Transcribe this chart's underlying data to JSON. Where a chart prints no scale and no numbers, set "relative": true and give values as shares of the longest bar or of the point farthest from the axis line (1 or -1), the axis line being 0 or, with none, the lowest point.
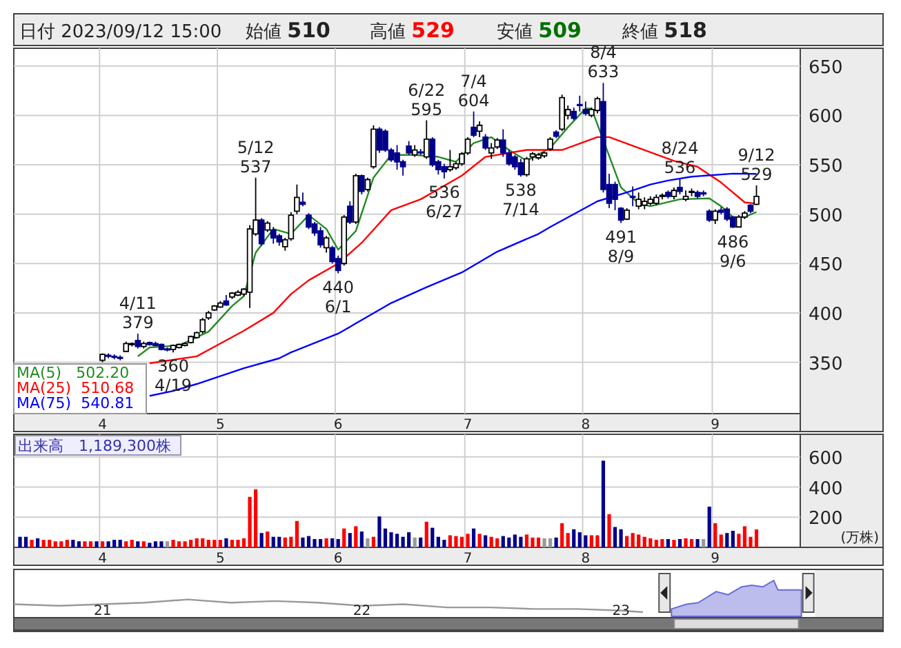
{
  "chart_data": [
    {
      "type": "candlestick",
      "title": "日付 2023/09/12 15:00",
      "categories": [
        null,
        null,
        null,
        null,
        null,
        null,
        null,
        null,
        null,
        null,
        null,
        null,
        null,
        null,
        "4",
        null,
        null,
        null,
        null,
        null,
        null,
        null,
        null,
        null,
        null,
        null,
        null,
        null,
        null,
        null,
        null,
        null,
        null,
        null,
        "5",
        null,
        null,
        null,
        null,
        null,
        null,
        null,
        null,
        null,
        null,
        null,
        null,
        null,
        null,
        null,
        null,
        null,
        null,
        null,
        "6",
        null,
        null,
        null,
        null,
        null,
        null,
        null,
        null,
        null,
        null,
        null,
        null,
        null,
        null,
        null,
        null,
        null,
        null,
        null,
        null,
        null,
        "7",
        null,
        null,
        null,
        null,
        null,
        null,
        null,
        null,
        null,
        null,
        null,
        null,
        null,
        null,
        null,
        null,
        null,
        null,
        null,
        "8",
        null,
        null,
        null,
        null,
        null,
        null,
        null,
        null,
        null,
        null,
        null,
        null,
        null,
        null,
        null,
        null,
        null,
        null,
        null,
        null,
        null,
        "9",
        null,
        null,
        null,
        null,
        null,
        null,
        null
      ],
      "ohlc": [
        null,
        null,
        null,
        null,
        null,
        null,
        null,
        null,
        null,
        null,
        null,
        null,
        null,
        null,
        [
          352,
          359,
          350,
          358
        ],
        [
          357,
          359,
          354,
          356
        ],
        [
          356,
          358,
          353,
          355
        ],
        [
          355,
          357,
          352,
          354
        ],
        [
          361,
          371,
          361,
          369
        ],
        [
          368,
          370,
          366,
          369
        ],
        [
          372,
          379,
          364,
          366
        ],
        [
          366,
          371,
          364,
          369
        ],
        [
          370,
          371,
          367,
          368
        ],
        [
          369,
          371,
          366,
          367
        ],
        [
          368,
          369,
          362,
          363
        ],
        [
          363,
          365,
          361,
          363
        ],
        [
          363,
          368,
          360,
          367
        ],
        [
          365,
          369,
          364,
          368
        ],
        [
          367,
          370,
          366,
          369
        ],
        [
          370,
          377,
          369,
          376
        ],
        [
          375,
          381,
          374,
          380
        ],
        [
          381,
          395,
          379,
          393
        ],
        [
          395,
          402,
          393,
          400
        ],
        [
          403,
          408,
          402,
          407
        ],
        [
          406,
          412,
          405,
          410
        ],
        [
          412,
          418,
          407,
          408
        ],
        [
          416,
          421,
          414,
          420
        ],
        [
          418,
          423,
          417,
          421
        ],
        [
          419,
          425,
          417,
          424
        ],
        [
          421,
          489,
          405,
          485
        ],
        [
          480,
          537,
          478,
          494
        ],
        [
          494,
          496,
          468,
          470
        ],
        [
          484,
          493,
          482,
          491
        ],
        [
          484,
          487,
          470,
          476
        ],
        [
          478,
          480,
          468,
          472
        ],
        [
          467,
          476,
          463,
          474
        ],
        [
          475,
          502,
          473,
          499
        ],
        [
          503,
          530,
          500,
          517
        ],
        [
          512,
          522,
          508,
          510
        ],
        [
          499,
          501,
          485,
          487
        ],
        [
          490,
          492,
          478,
          481
        ],
        [
          483,
          487,
          466,
          469
        ],
        [
          466,
          478,
          461,
          476
        ],
        [
          466,
          468,
          450,
          452
        ],
        [
          455,
          458,
          440,
          443
        ],
        [
          450,
          499,
          448,
          497
        ],
        [
          508,
          513,
          490,
          492
        ],
        [
          492,
          541,
          490,
          539
        ],
        [
          539,
          540,
          520,
          523
        ],
        [
          525,
          537,
          523,
          535
        ],
        [
          548,
          590,
          546,
          586
        ],
        [
          586,
          588,
          562,
          565
        ],
        [
          584,
          586,
          563,
          565
        ],
        [
          565,
          567,
          553,
          555
        ],
        [
          562,
          570,
          545,
          553
        ],
        [
          553,
          555,
          539,
          548
        ],
        [
          569,
          574,
          560,
          562
        ],
        [
          560,
          570,
          558,
          565
        ],
        [
          563,
          566,
          560,
          562
        ],
        [
          558,
          595,
          556,
          576
        ],
        [
          576,
          578,
          548,
          550
        ],
        [
          553,
          555,
          540,
          545
        ],
        [
          548,
          551,
          536,
          543
        ],
        [
          545,
          565,
          543,
          548
        ],
        [
          547,
          553,
          545,
          551
        ],
        [
          551,
          563,
          549,
          561
        ],
        [
          562,
          578,
          560,
          576
        ],
        [
          588,
          604,
          578,
          580
        ],
        [
          584,
          594,
          578,
          590
        ],
        [
          578,
          581,
          565,
          567
        ],
        [
          562,
          572,
          556,
          567
        ],
        [
          568,
          577,
          566,
          575
        ],
        [
          575,
          586,
          558,
          562
        ],
        [
          562,
          565,
          549,
          551
        ],
        [
          558,
          560,
          545,
          548
        ],
        [
          552,
          556,
          538,
          540
        ],
        [
          540,
          558,
          538,
          556
        ],
        [
          558,
          563,
          554,
          561
        ],
        [
          557,
          562,
          555,
          560
        ],
        [
          559,
          563,
          557,
          562
        ],
        [
          566,
          578,
          564,
          576
        ],
        [
          583,
          585,
          577,
          579
        ],
        [
          586,
          621,
          584,
          618
        ],
        [
          600,
          610,
          596,
          606
        ],
        [
          604,
          608,
          595,
          597
        ],
        [
          611,
          620,
          604,
          610
        ],
        [
          606,
          614,
          600,
          602
        ],
        [
          600,
          608,
          598,
          606
        ],
        [
          605,
          619,
          602,
          617
        ],
        [
          614,
          633,
          522,
          525
        ],
        [
          530,
          541,
          506,
          511
        ],
        [
          530,
          533,
          504,
          515
        ],
        [
          506,
          507,
          491,
          494
        ],
        [
          495,
          506,
          494,
          504
        ],
        [
          518,
          528,
          508,
          517
        ],
        [
          508,
          522,
          505,
          515
        ],
        [
          509,
          517,
          505,
          513
        ],
        [
          511,
          518,
          509,
          515
        ],
        [
          511,
          520,
          509,
          517
        ],
        [
          518,
          521,
          515,
          519
        ],
        [
          522,
          524,
          516,
          518
        ],
        [
          518,
          527,
          515,
          524
        ],
        [
          527,
          536,
          520,
          523
        ],
        [
          515,
          524,
          513,
          518
        ],
        [
          522,
          526,
          518,
          523
        ],
        [
          522,
          524,
          516,
          518
        ],
        [
          521,
          524,
          518,
          521
        ],
        [
          503,
          505,
          492,
          494
        ],
        [
          494,
          505,
          490,
          503
        ],
        [
          504,
          507,
          500,
          502
        ],
        [
          505,
          507,
          493,
          495
        ],
        [
          497,
          498,
          486,
          487
        ],
        [
          487,
          499,
          487,
          497
        ],
        [
          497,
          503,
          495,
          501
        ],
        [
          509,
          510,
          501,
          503
        ],
        [
          510,
          529,
          509,
          518
        ]
      ],
      "series": [
        {
          "type": "line",
          "name": "MA(5)   502.20",
          "color": "#228b22",
          "values": [
            null,
            null,
            null,
            null,
            null,
            null,
            null,
            null,
            null,
            null,
            null,
            null,
            null,
            null,
            null,
            null,
            null,
            null,
            null,
            null,
            356,
            null,
            365,
            null,
            null,
            null,
            null,
            367,
            null,
            null,
            null,
            null,
            381,
            null,
            null,
            null,
            407,
            null,
            417,
            null,
            461,
            null,
            null,
            485,
            null,
            null,
            480,
            null,
            null,
            499,
            null,
            null,
            485,
            null,
            464,
            null,
            null,
            483,
            null,
            null,
            537,
            null,
            null,
            560,
            null,
            null,
            null,
            560,
            null,
            null,
            null,
            558,
            null,
            null,
            553,
            null,
            null,
            572,
            null,
            null,
            578,
            null,
            null,
            565,
            null,
            null,
            554,
            null,
            null,
            null,
            567,
            null,
            null,
            588,
            null,
            null,
            607,
            607,
            null,
            null,
            null,
            null,
            527,
            null,
            null,
            511,
            null,
            508,
            null,
            null,
            null,
            null,
            515,
            null,
            null,
            null,
            null,
            516,
            null,
            508,
            null,
            497,
            null,
            497,
            null,
            502.2
          ]
        },
        {
          "type": "line",
          "name": "MA(25)  510.68",
          "color": "#ff0000",
          "values": [
            null,
            null,
            null,
            null,
            null,
            null,
            null,
            null,
            null,
            null,
            null,
            null,
            null,
            null,
            null,
            null,
            null,
            null,
            null,
            null,
            null,
            null,
            349,
            null,
            null,
            null,
            null,
            null,
            null,
            null,
            356,
            null,
            null,
            null,
            null,
            null,
            null,
            null,
            382,
            null,
            null,
            null,
            null,
            400,
            null,
            null,
            419,
            null,
            null,
            433,
            null,
            null,
            null,
            null,
            450,
            null,
            null,
            null,
            471,
            null,
            null,
            null,
            null,
            504,
            null,
            null,
            null,
            null,
            515,
            null,
            null,
            null,
            null,
            null,
            null,
            539,
            null,
            null,
            null,
            558,
            null,
            null,
            null,
            null,
            null,
            null,
            565,
            null,
            null,
            null,
            565,
            null,
            565,
            null,
            null,
            null,
            null,
            null,
            578,
            null,
            578,
            null,
            null,
            null,
            null,
            567,
            null,
            null,
            null,
            null,
            null,
            554,
            null,
            null,
            null,
            548,
            null,
            null,
            null,
            532,
            null,
            null,
            null,
            512,
            null,
            510.68
          ]
        },
        {
          "type": "line",
          "name": "MA(75)  540.81",
          "color": "#0000ff",
          "values": [
            null,
            null,
            null,
            null,
            null,
            null,
            null,
            null,
            null,
            null,
            null,
            null,
            null,
            null,
            null,
            null,
            null,
            null,
            null,
            null,
            null,
            null,
            316,
            null,
            null,
            null,
            321,
            null,
            null,
            null,
            328,
            null,
            null,
            null,
            336,
            null,
            null,
            null,
            344,
            null,
            null,
            null,
            null,
            null,
            354,
            null,
            360,
            null,
            null,
            null,
            null,
            null,
            null,
            null,
            379,
            null,
            null,
            null,
            null,
            null,
            null,
            null,
            null,
            410,
            null,
            null,
            null,
            null,
            null,
            426,
            null,
            null,
            null,
            null,
            null,
            441,
            null,
            null,
            null,
            null,
            null,
            462,
            null,
            null,
            null,
            null,
            null,
            null,
            480,
            null,
            487,
            null,
            null,
            null,
            null,
            null,
            null,
            null,
            513,
            null,
            null,
            null,
            null,
            522,
            null,
            null,
            null,
            530,
            null,
            null,
            534,
            null,
            null,
            null,
            538,
            null,
            null,
            null,
            null,
            null,
            null,
            541,
            null,
            null,
            null,
            540.81
          ]
        }
      ],
      "ylim": [
        298,
        668
      ],
      "yticks": [
        350,
        400,
        450,
        500,
        550,
        600,
        650
      ],
      "grid": true,
      "legend": "bottom left",
      "annotations": [
        "始値 510",
        "高値 529",
        "安値 509",
        "終値 518",
        {
          "text": "4/11\n379",
          "y": 379
        },
        {
          "text": "360\n4/19",
          "y": 360
        },
        {
          "text": "5/12\n537",
          "y": 537
        },
        {
          "text": "440\n6/1",
          "y": 440
        },
        {
          "text": "6/22\n595",
          "y": 595
        },
        {
          "text": "536\n6/27",
          "y": 536
        },
        {
          "text": "7/4\n604",
          "y": 604
        },
        {
          "text": "538\n7/14",
          "y": 538
        },
        {
          "text": "8/4\n633",
          "y": 633
        },
        {
          "text": "491\n8/9",
          "y": 491
        },
        {
          "text": "8/24\n536",
          "y": 536
        },
        {
          "text": "486\n9/6",
          "y": 486
        },
        {
          "text": "9/12\n529",
          "y": 529
        }
      ]
    },
    {
      "type": "bar",
      "title": "出来高　1,189,300株",
      "ylabel": "(万株)",
      "categories": [
        null,
        null,
        null,
        null,
        null,
        null,
        null,
        null,
        null,
        null,
        null,
        null,
        null,
        null,
        "4",
        null,
        null,
        null,
        null,
        null,
        null,
        null,
        null,
        null,
        null,
        null,
        null,
        null,
        null,
        null,
        null,
        null,
        null,
        null,
        "5",
        null,
        null,
        null,
        null,
        null,
        null,
        null,
        null,
        null,
        null,
        null,
        null,
        null,
        null,
        null,
        null,
        null,
        null,
        null,
        "6",
        null,
        null,
        null,
        null,
        null,
        null,
        null,
        null,
        null,
        null,
        null,
        null,
        null,
        null,
        null,
        null,
        null,
        null,
        null,
        null,
        null,
        "7",
        null,
        null,
        null,
        null,
        null,
        null,
        null,
        null,
        null,
        null,
        null,
        null,
        null,
        null,
        null,
        null,
        null,
        null,
        null,
        "8",
        null,
        null,
        null,
        null,
        null,
        null,
        null,
        null,
        null,
        null,
        null,
        null,
        null,
        null,
        null,
        null,
        null,
        null,
        null,
        null,
        null,
        "9",
        null,
        null,
        null,
        null,
        null,
        null,
        null
      ],
      "values": [
        70,
        70,
        50,
        60,
        50,
        50,
        40,
        40,
        50,
        50,
        40,
        40,
        40,
        40,
        40,
        40,
        50,
        50,
        40,
        50,
        40,
        40,
        30,
        40,
        40,
        40,
        50,
        40,
        40,
        50,
        60,
        60,
        50,
        50,
        50,
        60,
        50,
        50,
        60,
        335,
        385,
        95,
        105,
        70,
        70,
        65,
        70,
        175,
        65,
        75,
        55,
        55,
        60,
        60,
        55,
        125,
        95,
        140,
        105,
        60,
        70,
        205,
        125,
        100,
        90,
        70,
        100,
        65,
        65,
        170,
        130,
        70,
        50,
        80,
        75,
        70,
        90,
        125,
        90,
        80,
        70,
        60,
        75,
        65,
        85,
        70,
        85,
        65,
        65,
        60,
        60,
        65,
        160,
        95,
        120,
        100,
        80,
        80,
        80,
        575,
        220,
        135,
        120,
        75,
        95,
        85,
        70,
        60,
        50,
        55,
        55,
        50,
        55,
        60,
        55,
        55,
        55,
        270,
        160,
        85,
        95,
        110,
        90,
        140,
        70,
        118.93
      ],
      "colors": [
        "#00008b",
        "#00008b",
        "#ff0000",
        "#00008b",
        "#ff0000",
        "#ff0000",
        "#ff0000",
        "#ff0000",
        "#ff0000",
        "#00008b",
        "#00008b",
        "#ff0000",
        "#ff0000",
        "#00008b",
        "#ff0000",
        "#00008b",
        "#00008b",
        "#00008b",
        "#ff0000",
        "#ff0000",
        "#00008b",
        "#ff0000",
        "#00008b",
        "#00008b",
        "#00008b",
        "#999999",
        "#ff0000",
        "#ff0000",
        "#ff0000",
        "#ff0000",
        "#ff0000",
        "#ff0000",
        "#ff0000",
        "#ff0000",
        "#ff0000",
        "#00008b",
        "#ff0000",
        "#ff0000",
        "#ff0000",
        "#ff0000",
        "#ff0000",
        "#00008b",
        "#ff0000",
        "#00008b",
        "#00008b",
        "#ff0000",
        "#ff0000",
        "#ff0000",
        "#00008b",
        "#00008b",
        "#00008b",
        "#00008b",
        "#ff0000",
        "#00008b",
        "#00008b",
        "#ff0000",
        "#00008b",
        "#ff0000",
        "#00008b",
        "#999999",
        "#ff0000",
        "#00008b",
        "#00008b",
        "#00008b",
        "#00008b",
        "#00008b",
        "#00008b",
        "#999999",
        "#00008b",
        "#ff0000",
        "#00008b",
        "#00008b",
        "#00008b",
        "#ff0000",
        "#ff0000",
        "#ff0000",
        "#ff0000",
        "#00008b",
        "#ff0000",
        "#00008b",
        "#ff0000",
        "#ff0000",
        "#00008b",
        "#00008b",
        "#00008b",
        "#00008b",
        "#ff0000",
        "#ff0000",
        "#ff0000",
        "#999999",
        "#999999",
        "#00008b",
        "#ff0000",
        "#ff0000",
        "#00008b",
        "#00008b",
        "#00008b",
        "#ff0000",
        "#ff0000",
        "#00008b",
        "#ff0000",
        "#00008b",
        "#00008b",
        "#ff0000",
        "#ff0000",
        "#ff0000",
        "#ff0000",
        "#ff0000",
        "#ff0000",
        "#ff0000",
        "#00008b",
        "#ff0000",
        "#00008b",
        "#ff0000",
        "#ff0000",
        "#00008b",
        "#999999",
        "#00008b",
        "#ff0000",
        "#ff0000",
        "#00008b",
        "#00008b",
        "#ff0000",
        "#ff0000",
        "#ff0000",
        "#ff0000"
      ],
      "ylim": [
        0,
        750
      ],
      "yticks": [
        200,
        400,
        600
      ],
      "grid": true
    },
    {
      "type": "line",
      "relative": true,
      "xlim": [
        "2020-08-29",
        "2024-01-05"
      ],
      "xticks": [
        {
          "value": "2021-01-01",
          "label": "21"
        },
        {
          "value": "2022-01-01",
          "label": "22"
        },
        {
          "value": "2023-01-01",
          "label": "23"
        }
      ],
      "series": [
        {
          "color": "#999999",
          "x": [
            "2020-08-29",
            "2020-11-01",
            "2021-01-01",
            "2021-03-01",
            "2021-05-01",
            "2021-07-01",
            "2021-09-01",
            "2021-11-01",
            "2022-01-01",
            "2022-03-01",
            "2022-05-01",
            "2022-07-01",
            "2022-09-01",
            "2022-11-01",
            "2023-01-01",
            "2023-02-01"
          ],
          "values": [
            0.25,
            0.2,
            0.25,
            0.3,
            0.4,
            0.3,
            0.35,
            0.3,
            0.2,
            0.25,
            0.15,
            0.15,
            0.1,
            0.1,
            0.05,
            0
          ]
        },
        {
          "type": "area",
          "color": "#6a6ad8",
          "x": [
            "2023-03-13",
            "2023-04-03",
            "2023-04-20",
            "2023-05-15",
            "2023-06-01",
            "2023-06-20",
            "2023-07-04",
            "2023-07-20",
            "2023-08-04",
            "2023-08-10",
            "2023-09-01",
            "2023-09-12"
          ],
          "values": [
            0.1,
            0.25,
            0.3,
            0.65,
            0.55,
            0.8,
            0.85,
            0.8,
            1,
            0.7,
            0.7,
            0.7
          ]
        }
      ]
    }
  ]
}
